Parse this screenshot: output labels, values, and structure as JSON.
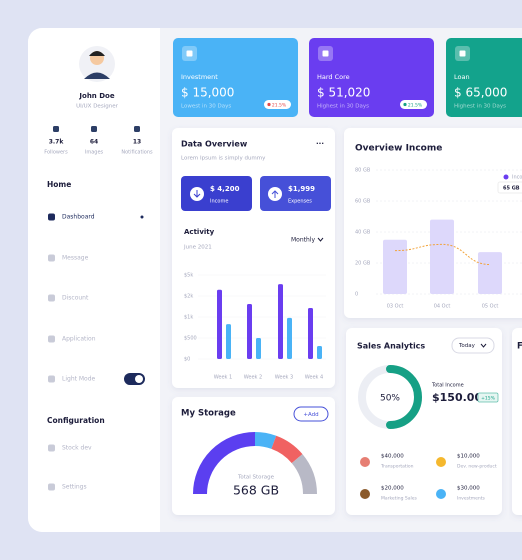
{
  "sidebar": {
    "name": "John Doe",
    "role": "UI/UX Designer",
    "stats": [
      {
        "value": "3.7k",
        "label": "Followers"
      },
      {
        "value": "64",
        "label": "Images"
      },
      {
        "value": "13",
        "label": "Notifications"
      }
    ],
    "sections": [
      {
        "title": "Home",
        "items": [
          "Dashboard",
          "Message",
          "Discount",
          "Application",
          "Light Mode"
        ]
      },
      {
        "title": "Configuration",
        "items": [
          "Stock dev",
          "Settings"
        ]
      }
    ]
  },
  "stat_cards": [
    {
      "title": "Investment",
      "amount": "$ 15,000",
      "note": "Lowest in 30 Days",
      "change": "21.5%",
      "color": "#4ab3f6"
    },
    {
      "title": "Hard Core",
      "amount": "$ 51,020",
      "note": "Highest in 30 Days",
      "change": "21.5%",
      "color": "#6a3df0"
    },
    {
      "title": "Loan",
      "amount": "$ 65,000",
      "note": "Highest in 30 Days",
      "color": "#13a38c"
    }
  ],
  "data_overview": {
    "title": "Data Overview",
    "subtitle": "Lorem Ipsum is simply dummy",
    "income": {
      "amount": "$ 4,200",
      "label": "Income"
    },
    "expenses": {
      "amount": "$1,999",
      "label": "Expenses"
    },
    "activity": {
      "type": "bar",
      "title": "Activity",
      "period": "June 2021",
      "filter": "Monthly",
      "categories": [
        "Week 1",
        "Week 2",
        "Week 3",
        "Week 4"
      ],
      "yticks": [
        {
          "value": 0,
          "label": "$0"
        },
        {
          "value": 500,
          "label": "$500"
        },
        {
          "value": 1000,
          "label": "$1k"
        },
        {
          "value": 2000,
          "label": "$2k"
        },
        {
          "value": 5000,
          "label": "$5k"
        }
      ],
      "series": [
        {
          "color": "#6a3df0",
          "values": [
            2900,
            1620,
            3700,
            1430
          ]
        },
        {
          "color": "#4ab3f6",
          "values": [
            830,
            500,
            980,
            310
          ]
        }
      ]
    }
  },
  "overview_income": {
    "type": "bar",
    "title": "Overview Income",
    "tooltip": "65 GB",
    "categories": [
      "03 Oct",
      "04 Oct",
      "05 Oct"
    ],
    "ylim": [
      0,
      80
    ],
    "yticks": [
      0,
      {
        "value": 20,
        "label": "20 GB"
      },
      {
        "value": 40,
        "label": "40 GB"
      },
      {
        "value": 60,
        "label": "60 GB"
      },
      {
        "value": 80,
        "label": "80 GB"
      }
    ],
    "series": [
      {
        "name": "Income",
        "color": "#ddd8fb",
        "values": [
          35,
          48,
          27
        ]
      },
      {
        "color": "#f2a33a",
        "values": [
          28,
          32,
          19
        ]
      }
    ]
  },
  "storage": {
    "title": "My Storage",
    "button": "+Add",
    "label": "Total Storage",
    "total": "568 GB"
  },
  "sales": {
    "title": "Sales Analytics",
    "filter": "Today",
    "percent": 50,
    "percent_label": "50%",
    "total_label": "Total Income",
    "total": "$150.000",
    "change": "+15%",
    "items": [
      {
        "amount": "$40,000",
        "label": "Transportation"
      },
      {
        "amount": "$10,000",
        "label": "Dev. new-product"
      },
      {
        "amount": "$20,000",
        "label": "Marketing Sales"
      },
      {
        "amount": "$30,000",
        "label": "Investments"
      }
    ]
  },
  "side_card": {
    "title": "F"
  }
}
